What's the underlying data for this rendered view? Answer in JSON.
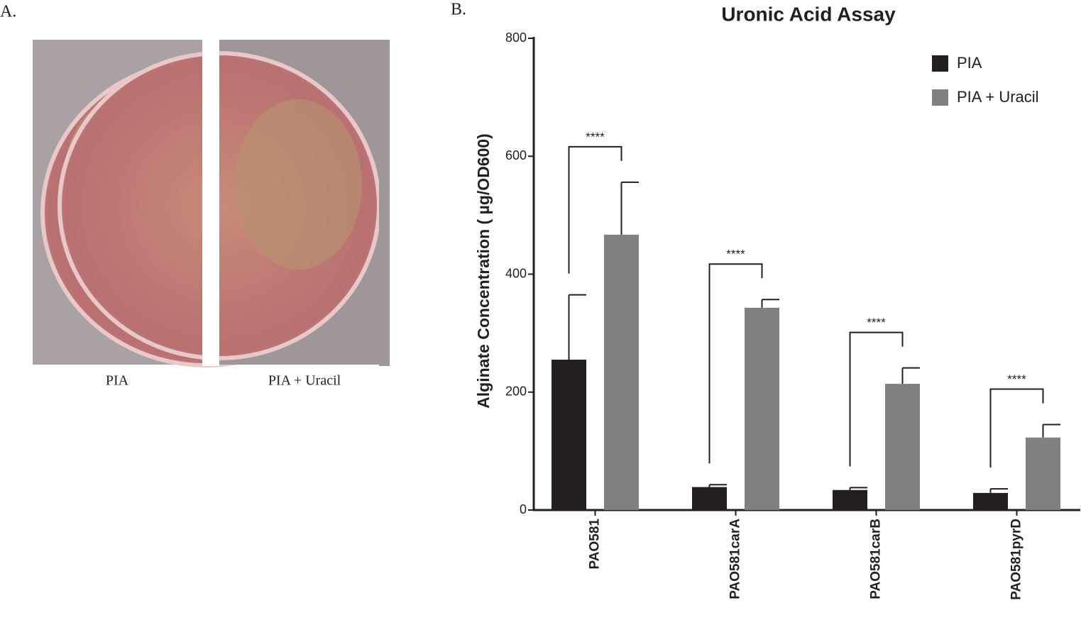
{
  "panel_a": {
    "label": "A.",
    "images": [
      {
        "caption": "PIA"
      },
      {
        "caption": "PIA + Uracil"
      }
    ]
  },
  "chart_data": {
    "type": "bar",
    "panel_label": "B.",
    "title": "Uronic Acid Assay",
    "y_label": "Alginate Concentration ( µg/OD600)",
    "categories": [
      "PAO581",
      "PAO581carA",
      "PAO581carB",
      "PAO581pyrD"
    ],
    "series": [
      {
        "name": "PIA",
        "color": "#231f20",
        "values": [
          255,
          39,
          34,
          29
        ],
        "errors": [
          110,
          4,
          4,
          7
        ]
      },
      {
        "name": "PIA + Uracil",
        "color": "#808080",
        "values": [
          467,
          343,
          214,
          123
        ],
        "errors": [
          89,
          14,
          27,
          22
        ]
      }
    ],
    "annotations": [
      "****",
      "****",
      "****",
      "****"
    ],
    "ylim": [
      0,
      800
    ],
    "yticks": [
      0,
      200,
      400,
      600,
      800
    ],
    "legend": "upper right"
  }
}
